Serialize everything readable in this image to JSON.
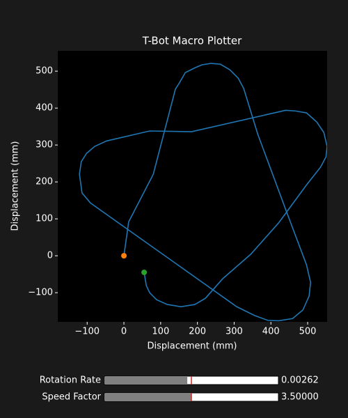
{
  "chart_data": {
    "type": "line",
    "title": "T-Bot Macro Plotter",
    "xlabel": "Displacement (mm)",
    "ylabel": "Displacement (mm)",
    "xlim": [
      -180,
      553
    ],
    "ylim": [
      -179,
      555
    ],
    "xticks": [
      {
        "value": -100,
        "label": "−100"
      },
      0,
      100,
      200,
      300,
      400,
      500
    ],
    "yticks": [
      {
        "value": -100,
        "label": "−100"
      },
      0,
      100,
      200,
      300,
      400,
      500
    ],
    "background": "#000000",
    "series": [
      {
        "style": "line",
        "color": "#1f77b4",
        "x": [
          0,
          13,
          80,
          140,
          152,
          167,
          193,
          212,
          237,
          262,
          288,
          311,
          326,
          364,
          440,
          497,
          508,
          504,
          487,
          459,
          421,
          392,
          356,
          307,
          -91,
          -114,
          -121,
          -116,
          -102,
          -80,
          -47,
          70,
          184,
          440,
          468,
          497,
          525,
          544,
          553,
          550,
          535,
          497,
          421,
          345,
          269,
          222,
          193,
          155,
          118,
          89,
          70,
          61,
          55
        ],
        "values": [
          0,
          92,
          221,
          451,
          470,
          496,
          509,
          517,
          521,
          519,
          504,
          481,
          453,
          330,
          126,
          -25,
          -72,
          -109,
          -147,
          -170,
          -176,
          -175,
          -162,
          -138,
          143,
          170,
          221,
          255,
          277,
          296,
          311,
          338,
          336,
          394,
          392,
          387,
          362,
          334,
          296,
          268,
          240,
          192,
          89,
          4,
          -62,
          -115,
          -132,
          -138,
          -132,
          -119,
          -100,
          -81,
          -45
        ]
      },
      {
        "style": "point",
        "color": "#ff7f0e",
        "x": [
          0
        ],
        "values": [
          0
        ]
      },
      {
        "style": "point",
        "color": "#2ca02c",
        "x": [
          55
        ],
        "values": [
          -45
        ]
      }
    ]
  },
  "sliders": [
    {
      "label": "Rotation Rate",
      "value": 0.00262,
      "valmin": 0,
      "valmax": 0.0055,
      "initial": 0.00275
    },
    {
      "label": "Speed Factor",
      "value": 3.5,
      "value_label": "3.50000",
      "valmin": 0,
      "valmax": 7,
      "initial": 3.5
    }
  ]
}
